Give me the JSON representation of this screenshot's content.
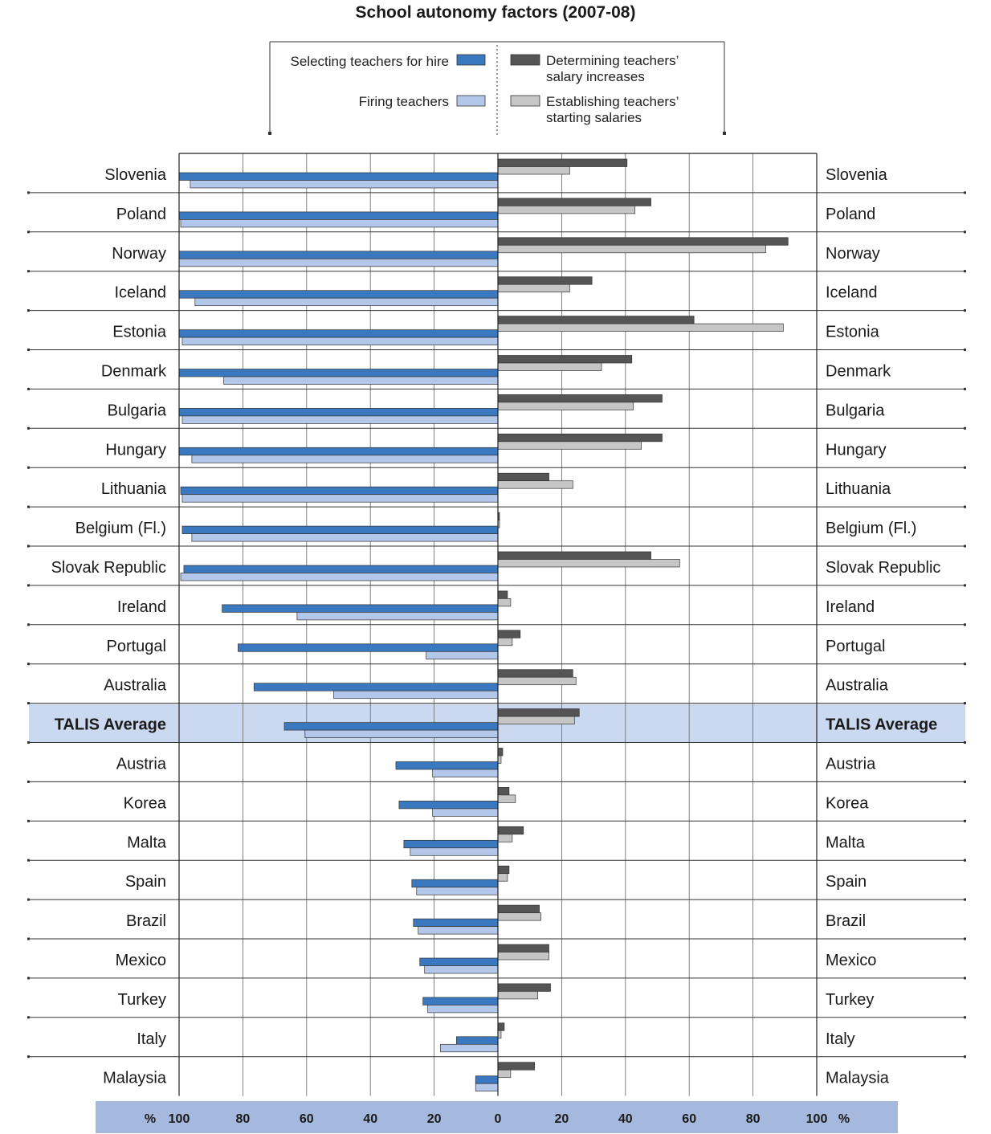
{
  "chart_data": {
    "type": "bar",
    "orientation": "horizontal-diverging",
    "title": "School autonomy factors (2007-08)",
    "categories": [
      "Slovenia",
      "Poland",
      "Norway",
      "Iceland",
      "Estonia",
      "Denmark",
      "Bulgaria",
      "Hungary",
      "Lithuania",
      "Belgium (Fl.)",
      "Slovak Republic",
      "Ireland",
      "Portugal",
      "Australia",
      "TALIS Average",
      "Austria",
      "Korea",
      "Malta",
      "Spain",
      "Brazil",
      "Mexico",
      "Turkey",
      "Italy",
      "Malaysia"
    ],
    "highlight_category": "TALIS Average",
    "left_series": [
      {
        "name": "Selecting teachers for hire",
        "color": "#3a78bf",
        "values": [
          100,
          100,
          100,
          100,
          100,
          100,
          100,
          100,
          99.5,
          99,
          98.5,
          86.5,
          81.5,
          76.5,
          67,
          32,
          31,
          29.5,
          27,
          26.5,
          24.5,
          23.5,
          13,
          7
        ]
      },
      {
        "name": "Firing teachers",
        "color": "#b3c7ea",
        "values": [
          96.5,
          99.5,
          100,
          95,
          99,
          86,
          99,
          96,
          99,
          96,
          99.5,
          63,
          22.5,
          51.5,
          60.5,
          20.5,
          20.5,
          27.5,
          25.5,
          25,
          23,
          22,
          18,
          7
        ]
      }
    ],
    "right_series": [
      {
        "name": "Determining teachers’ salary increases",
        "color": "#555555",
        "values": [
          40.5,
          48,
          91,
          29.5,
          61.5,
          42,
          51.5,
          51.5,
          16,
          0.5,
          48,
          3,
          7,
          23.5,
          25.5,
          1.5,
          3.5,
          8,
          3.5,
          13,
          16,
          16.5,
          2,
          11.5
        ]
      },
      {
        "name": "Establishing teachers’ starting salaries",
        "color": "#c6c6c6",
        "values": [
          22.5,
          43,
          84,
          22.5,
          89.5,
          32.5,
          42.5,
          45,
          23.5,
          0.5,
          57,
          4,
          4.5,
          24.5,
          24,
          1,
          5.5,
          4.5,
          3,
          13.5,
          16,
          12.5,
          1,
          4
        ]
      }
    ],
    "x_ticks_left": [
      "100",
      "80",
      "60",
      "40",
      "20",
      "0"
    ],
    "x_ticks_right": [
      "20",
      "40",
      "60",
      "80",
      "100"
    ],
    "xunit": "%",
    "xlim": [
      0,
      100
    ],
    "grid": true,
    "legend_position": "top"
  }
}
